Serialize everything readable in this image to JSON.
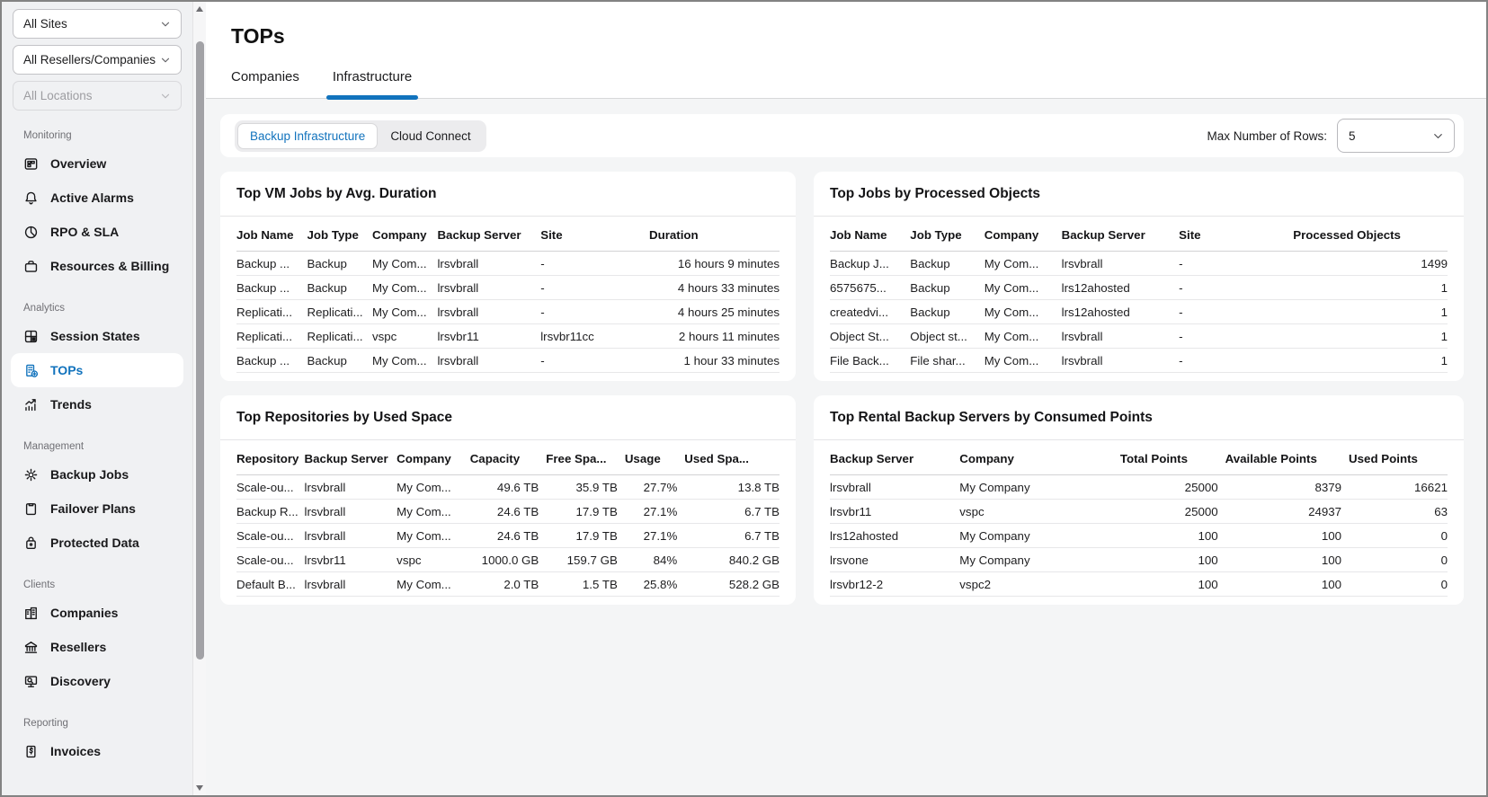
{
  "sidebar": {
    "filters": [
      {
        "label": "All Sites",
        "disabled": false
      },
      {
        "label": "All Resellers/Companies",
        "disabled": false
      },
      {
        "label": "All Locations",
        "disabled": true
      }
    ],
    "sections": [
      {
        "label": "Monitoring",
        "items": [
          {
            "label": "Overview",
            "icon": "overview-icon"
          },
          {
            "label": "Active Alarms",
            "icon": "bell-icon"
          },
          {
            "label": "RPO & SLA",
            "icon": "pie-icon"
          },
          {
            "label": "Resources & Billing",
            "icon": "briefcase-icon"
          }
        ]
      },
      {
        "label": "Analytics",
        "items": [
          {
            "label": "Session States",
            "icon": "grid-icon"
          },
          {
            "label": "TOPs",
            "icon": "building-plus-icon",
            "active": true
          },
          {
            "label": "Trends",
            "icon": "trend-icon"
          }
        ]
      },
      {
        "label": "Management",
        "items": [
          {
            "label": "Backup Jobs",
            "icon": "gear-icon"
          },
          {
            "label": "Failover Plans",
            "icon": "clipboard-icon"
          },
          {
            "label": "Protected Data",
            "icon": "lock-icon"
          }
        ]
      },
      {
        "label": "Clients",
        "items": [
          {
            "label": "Companies",
            "icon": "company-icon"
          },
          {
            "label": "Resellers",
            "icon": "bank-icon"
          },
          {
            "label": "Discovery",
            "icon": "discovery-icon"
          }
        ]
      },
      {
        "label": "Reporting",
        "items": [
          {
            "label": "Invoices",
            "icon": "invoice-icon"
          }
        ]
      }
    ]
  },
  "header": {
    "title": "TOPs",
    "tabs": [
      {
        "label": "Companies",
        "active": false
      },
      {
        "label": "Infrastructure",
        "active": true
      }
    ]
  },
  "toolbar": {
    "segments": [
      {
        "label": "Backup Infrastructure",
        "active": true
      },
      {
        "label": "Cloud Connect",
        "active": false
      }
    ],
    "max_rows_label": "Max Number of Rows:",
    "max_rows_value": "5"
  },
  "colors": {
    "accent": "#1273bd",
    "sidebar_bg": "#f0f1f3",
    "content_bg": "#f4f5f6"
  },
  "panels": [
    {
      "title": "Top VM Jobs by Avg. Duration",
      "columns": [
        {
          "label": "Job Name",
          "align": "left"
        },
        {
          "label": "Job Type",
          "align": "left"
        },
        {
          "label": "Company",
          "align": "left"
        },
        {
          "label": "Backup Server",
          "align": "left"
        },
        {
          "label": "Site",
          "align": "left"
        },
        {
          "label": "Duration",
          "align": "right"
        }
      ],
      "rows": [
        [
          "Backup ...",
          "Backup",
          "My Com...",
          "lrsvbrall",
          "-",
          "16 hours 9 minutes"
        ],
        [
          "Backup ...",
          "Backup",
          "My Com...",
          "lrsvbrall",
          "-",
          "4 hours 33 minutes"
        ],
        [
          "Replicati...",
          "Replicati...",
          "My Com...",
          "lrsvbrall",
          "-",
          "4 hours 25 minutes"
        ],
        [
          "Replicati...",
          "Replicati...",
          "vspc",
          "lrsvbr11",
          "lrsvbr11cc",
          "2 hours 11 minutes"
        ],
        [
          "Backup ...",
          "Backup",
          "My Com...",
          "lrsvbrall",
          "-",
          "1 hour 33 minutes"
        ]
      ]
    },
    {
      "title": "Top Jobs by Processed Objects",
      "columns": [
        {
          "label": "Job Name",
          "align": "left"
        },
        {
          "label": "Job Type",
          "align": "left"
        },
        {
          "label": "Company",
          "align": "left"
        },
        {
          "label": "Backup Server",
          "align": "left"
        },
        {
          "label": "Site",
          "align": "left"
        },
        {
          "label": "Processed Objects",
          "align": "right"
        }
      ],
      "rows": [
        [
          "Backup J...",
          "Backup",
          "My Com...",
          "lrsvbrall",
          "-",
          "1499"
        ],
        [
          "6575675...",
          "Backup",
          "My Com...",
          "lrs12ahosted",
          "-",
          "1"
        ],
        [
          "createdvi...",
          "Backup",
          "My Com...",
          "lrs12ahosted",
          "-",
          "1"
        ],
        [
          "Object St...",
          "Object st...",
          "My Com...",
          "lrsvbrall",
          "-",
          "1"
        ],
        [
          "File Back...",
          "File shar...",
          "My Com...",
          "lrsvbrall",
          "-",
          "1"
        ]
      ]
    },
    {
      "title": "Top Repositories by Used Space",
      "columns": [
        {
          "label": "Repository",
          "align": "left"
        },
        {
          "label": "Backup Server",
          "align": "left"
        },
        {
          "label": "Company",
          "align": "left"
        },
        {
          "label": "Capacity",
          "align": "right"
        },
        {
          "label": "Free Spa...",
          "align": "right"
        },
        {
          "label": "Usage",
          "align": "right"
        },
        {
          "label": "Used Spa...",
          "align": "right"
        }
      ],
      "rows": [
        [
          "Scale-ou...",
          "lrsvbrall",
          "My Com...",
          "49.6 TB",
          "35.9 TB",
          "27.7%",
          "13.8 TB"
        ],
        [
          "Backup R...",
          "lrsvbrall",
          "My Com...",
          "24.6 TB",
          "17.9 TB",
          "27.1%",
          "6.7 TB"
        ],
        [
          "Scale-ou...",
          "lrsvbrall",
          "My Com...",
          "24.6 TB",
          "17.9 TB",
          "27.1%",
          "6.7 TB"
        ],
        [
          "Scale-ou...",
          "lrsvbr11",
          "vspc",
          "1000.0 GB",
          "159.7 GB",
          "84%",
          "840.2 GB"
        ],
        [
          "Default B...",
          "lrsvbrall",
          "My Com...",
          "2.0 TB",
          "1.5 TB",
          "25.8%",
          "528.2 GB"
        ]
      ]
    },
    {
      "title": "Top Rental Backup Servers by Consumed Points",
      "columns": [
        {
          "label": "Backup Server",
          "align": "left"
        },
        {
          "label": "Company",
          "align": "left"
        },
        {
          "label": "Total Points",
          "align": "right"
        },
        {
          "label": "Available Points",
          "align": "right"
        },
        {
          "label": "Used Points",
          "align": "right"
        }
      ],
      "rows": [
        [
          "lrsvbrall",
          "My Company",
          "25000",
          "8379",
          "16621"
        ],
        [
          "lrsvbr11",
          "vspc",
          "25000",
          "24937",
          "63"
        ],
        [
          "lrs12ahosted",
          "My Company",
          "100",
          "100",
          "0"
        ],
        [
          "lrsvone",
          "My Company",
          "100",
          "100",
          "0"
        ],
        [
          "lrsvbr12-2",
          "vspc2",
          "100",
          "100",
          "0"
        ]
      ]
    }
  ]
}
